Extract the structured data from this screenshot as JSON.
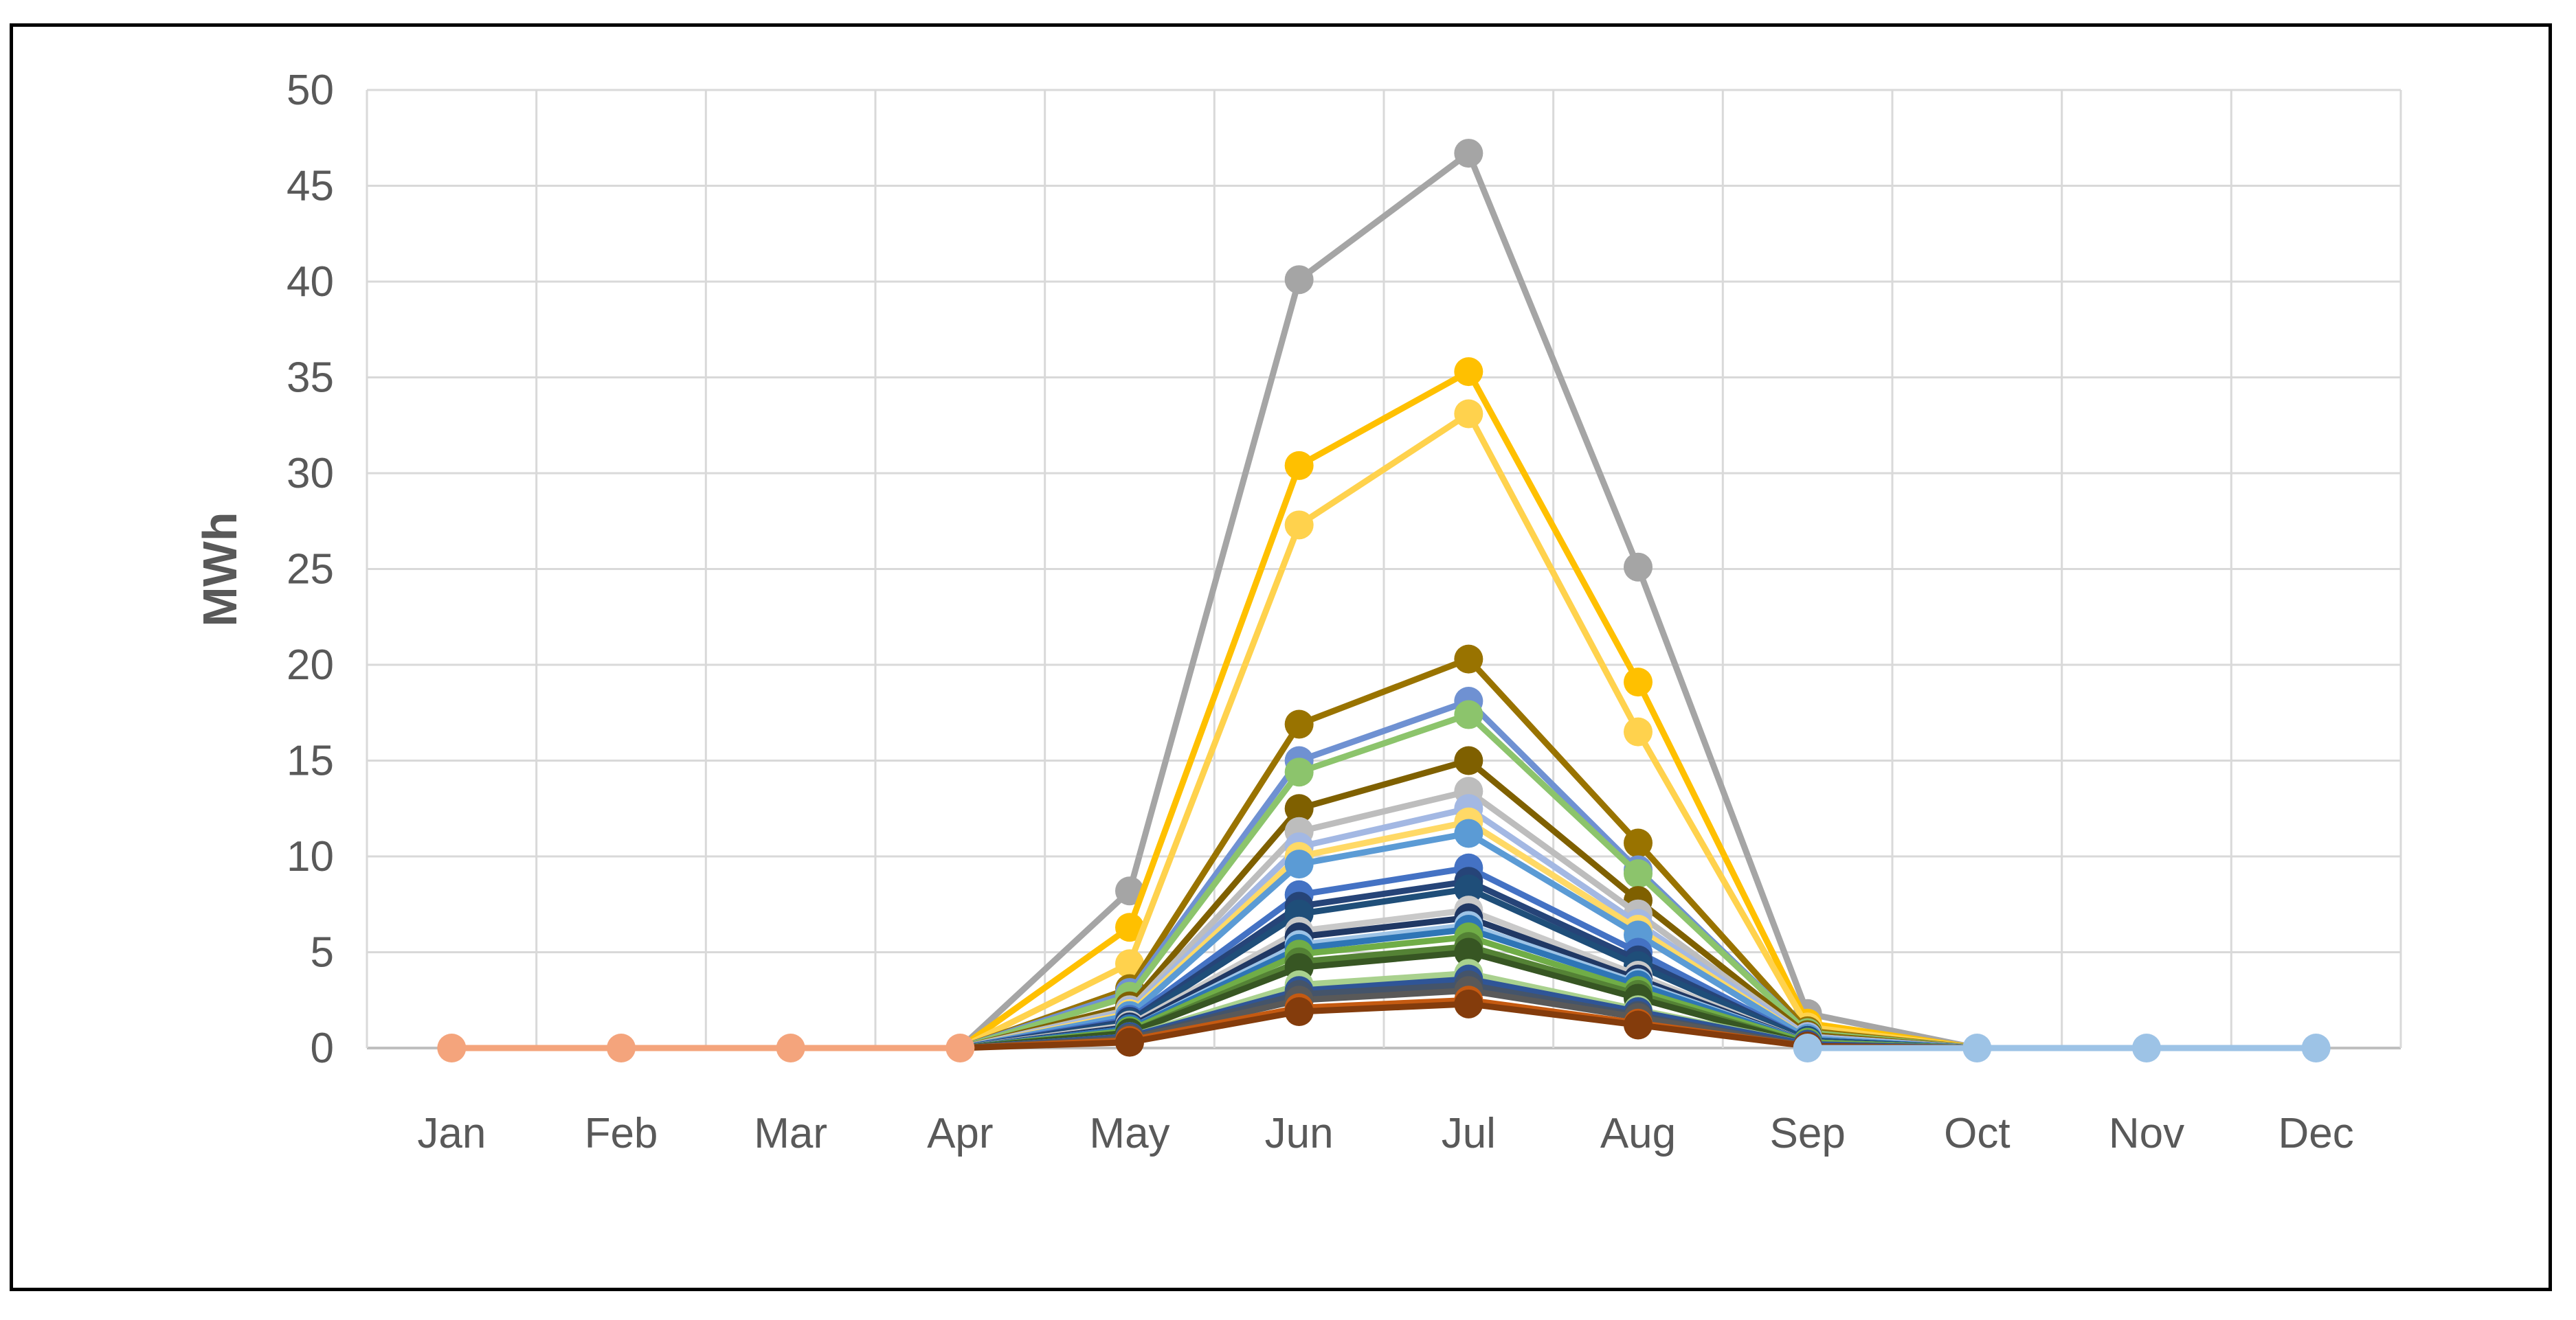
{
  "chart_data": {
    "type": "line",
    "title": "",
    "xlabel": "",
    "ylabel": "MWh",
    "ylim": [
      0,
      50
    ],
    "yticks": [
      0,
      5,
      10,
      15,
      20,
      25,
      30,
      35,
      40,
      45,
      50
    ],
    "grid": true,
    "legend": "none",
    "categories": [
      "Jan",
      "Feb",
      "Mar",
      "Apr",
      "May",
      "Jun",
      "Jul",
      "Aug",
      "Sep",
      "Oct",
      "Nov",
      "Dec"
    ],
    "series": [
      {
        "color": "#A5A5A5",
        "values": [
          0,
          0,
          0,
          0,
          8.2,
          40.1,
          46.7,
          25.1,
          1.8,
          0,
          0,
          0
        ]
      },
      {
        "color": "#FFC000",
        "values": [
          0,
          0,
          0,
          0,
          6.3,
          30.4,
          35.3,
          19.1,
          1.3,
          0,
          0,
          0
        ]
      },
      {
        "color": "#FFD24D",
        "values": [
          0,
          0,
          0,
          0,
          4.4,
          27.3,
          33.1,
          16.5,
          1.1,
          0,
          0,
          0
        ]
      },
      {
        "color": "#997300",
        "values": [
          0,
          0,
          0,
          0,
          3.1,
          16.9,
          20.3,
          10.7,
          0.9,
          0,
          0,
          0
        ]
      },
      {
        "color": "#6F91D2",
        "values": [
          0,
          0,
          0,
          0,
          2.9,
          15.0,
          18.1,
          9.3,
          0.8,
          0,
          0,
          0
        ]
      },
      {
        "color": "#8CC46C",
        "values": [
          0,
          0,
          0,
          0,
          2.7,
          14.4,
          17.4,
          9.1,
          0.8,
          0,
          0,
          0
        ]
      },
      {
        "color": "#7F6000",
        "values": [
          0,
          0,
          0,
          0,
          2.2,
          12.5,
          15.0,
          7.7,
          0.7,
          0,
          0,
          0
        ]
      },
      {
        "color": "#BDBDBD",
        "values": [
          0,
          0,
          0,
          0,
          2.0,
          11.3,
          13.4,
          7.0,
          0.6,
          0,
          0,
          0
        ]
      },
      {
        "color": "#A3B8E3",
        "values": [
          0,
          0,
          0,
          0,
          1.9,
          10.5,
          12.5,
          6.5,
          0.6,
          0,
          0,
          0
        ]
      },
      {
        "color": "#FFD966",
        "values": [
          0,
          0,
          0,
          0,
          1.8,
          10.0,
          11.8,
          6.2,
          0.5,
          0,
          0,
          0
        ]
      },
      {
        "color": "#5B9BD5",
        "values": [
          0,
          0,
          0,
          0,
          1.7,
          9.6,
          11.2,
          5.9,
          0.5,
          0,
          0,
          0
        ]
      },
      {
        "color": "#4472C4",
        "values": [
          0,
          0,
          0,
          0,
          1.5,
          8.0,
          9.4,
          5.0,
          0.4,
          0,
          0,
          0
        ]
      },
      {
        "color": "#264478",
        "values": [
          0,
          0,
          0,
          0,
          1.4,
          7.4,
          8.7,
          4.6,
          0.4,
          0,
          0,
          0
        ]
      },
      {
        "color": "#1F4E79",
        "values": [
          0,
          0,
          0,
          0,
          1.3,
          7.0,
          8.3,
          4.3,
          0.4,
          0,
          0,
          0
        ]
      },
      {
        "color": "#C9C9C9",
        "values": [
          0,
          0,
          0,
          0,
          1.2,
          6.1,
          7.2,
          3.8,
          0.3,
          0,
          0,
          0
        ]
      },
      {
        "color": "#203864",
        "values": [
          0,
          0,
          0,
          0,
          1.1,
          5.8,
          6.8,
          3.6,
          0.3,
          0,
          0,
          0
        ]
      },
      {
        "color": "#9DC3E6",
        "values": [
          0,
          0,
          0,
          0,
          1.0,
          5.4,
          6.4,
          3.4,
          0.3,
          0,
          0,
          0
        ]
      },
      {
        "color": "#2E75B6",
        "values": [
          0,
          0,
          0,
          0,
          1.0,
          5.2,
          6.2,
          3.3,
          0.3,
          0,
          0,
          0
        ]
      },
      {
        "color": "#70AD47",
        "values": [
          0,
          0,
          0,
          0,
          0.9,
          4.9,
          5.8,
          3.0,
          0.3,
          0,
          0,
          0
        ]
      },
      {
        "color": "#548235",
        "values": [
          0,
          0,
          0,
          0,
          0.8,
          4.5,
          5.3,
          2.8,
          0.2,
          0,
          0,
          0
        ]
      },
      {
        "color": "#375623",
        "values": [
          0,
          0,
          0,
          0,
          0.8,
          4.2,
          5.0,
          2.6,
          0.2,
          0,
          0,
          0
        ]
      },
      {
        "color": "#A9D18E",
        "values": [
          0,
          0,
          0,
          0,
          0.6,
          3.3,
          3.9,
          2.0,
          0.2,
          0,
          0,
          0
        ]
      },
      {
        "color": "#2F5597",
        "values": [
          0,
          0,
          0,
          0,
          0.6,
          3.0,
          3.6,
          1.9,
          0.2,
          0,
          0,
          0
        ]
      },
      {
        "color": "#44546A",
        "values": [
          0,
          0,
          0,
          0,
          0.5,
          2.8,
          3.3,
          1.7,
          0.1,
          0,
          0,
          0
        ]
      },
      {
        "color": "#595959",
        "values": [
          0,
          0,
          0,
          0,
          0.5,
          2.5,
          3.0,
          1.6,
          0.1,
          0,
          0,
          0
        ]
      },
      {
        "color": "#C55A11",
        "values": [
          0,
          0,
          0,
          0,
          0.4,
          2.1,
          2.5,
          1.3,
          0.1,
          0,
          0,
          0
        ]
      },
      {
        "color": "#843C0C",
        "values": [
          0,
          0,
          0,
          0,
          0.3,
          1.9,
          2.3,
          1.2,
          0.1,
          0,
          0,
          0
        ]
      }
    ],
    "zero_segment_colors": {
      "early": "#F4A47C",
      "late": "#9DC3E6"
    }
  }
}
